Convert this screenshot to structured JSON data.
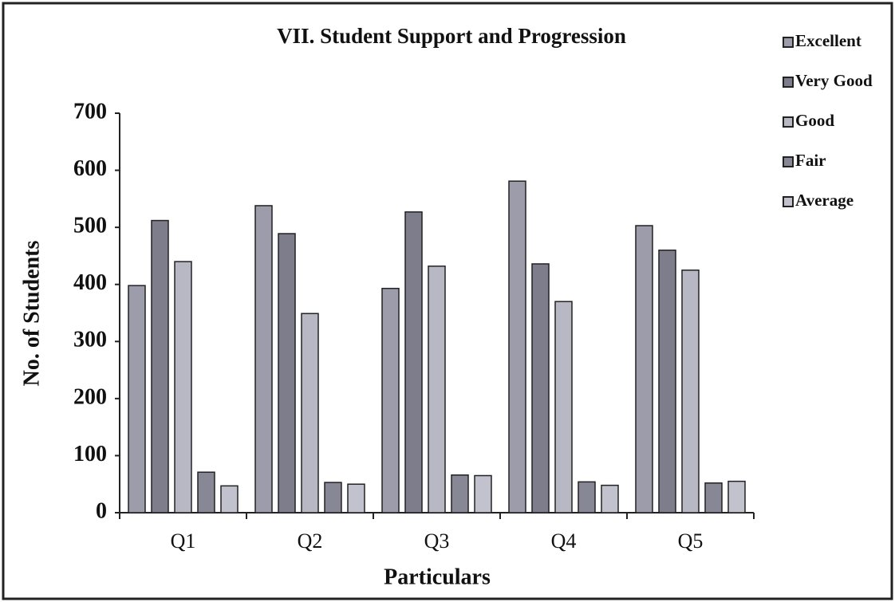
{
  "chart_data": {
    "type": "bar",
    "title": "VII. Student Support and Progression",
    "x_label": "Particulars",
    "y_label": "No. of Students",
    "categories": [
      "Q1",
      "Q2",
      "Q3",
      "Q4",
      "Q5"
    ],
    "series": [
      {
        "name": "Excellent",
        "color": "#9c9cab",
        "values": [
          398,
          538,
          393,
          581,
          503
        ]
      },
      {
        "name": "Very Good",
        "color": "#7d7d8b",
        "values": [
          512,
          489,
          527,
          436,
          460
        ]
      },
      {
        "name": "Good",
        "color": "#b8b8c4",
        "values": [
          440,
          349,
          432,
          370,
          425
        ]
      },
      {
        "name": "Fair",
        "color": "#878795",
        "values": [
          71,
          53,
          66,
          54,
          52
        ]
      },
      {
        "name": "Average",
        "color": "#c2c2ce",
        "values": [
          47,
          50,
          65,
          48,
          55
        ]
      }
    ],
    "ylim": [
      0,
      700
    ],
    "yticks": [
      0,
      100,
      200,
      300,
      400,
      500,
      600,
      700
    ],
    "grid": false,
    "legend": "right"
  }
}
